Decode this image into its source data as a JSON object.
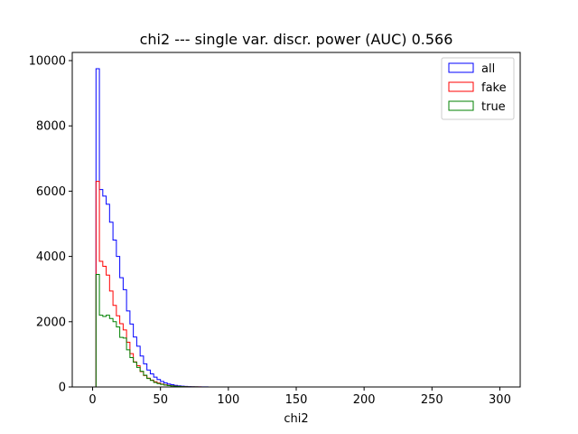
{
  "chart_data": {
    "type": "histogram",
    "title": "chi2 --- single var. discr. power (AUC) 0.566",
    "xlabel": "chi2",
    "ylabel": "",
    "xlim": [
      -15,
      315
    ],
    "ylim": [
      0,
      10250
    ],
    "xticks": [
      0,
      50,
      100,
      150,
      200,
      250,
      300
    ],
    "yticks": [
      0,
      2000,
      4000,
      6000,
      8000,
      10000
    ],
    "legend_position": "top-right",
    "grid": false,
    "bin_width": 2.5,
    "x_start": 0,
    "series": [
      {
        "name": "all",
        "color": "#0000ff",
        "values": [
          0,
          9750,
          6050,
          5850,
          5600,
          5050,
          4500,
          4000,
          3350,
          2980,
          2330,
          1930,
          1530,
          1250,
          950,
          710,
          520,
          400,
          300,
          230,
          170,
          125,
          90,
          70,
          50,
          35,
          25,
          18,
          12,
          8,
          5,
          4,
          3,
          2,
          1,
          1,
          1,
          0,
          0,
          0,
          0,
          0,
          0,
          0,
          0,
          0,
          0,
          0,
          0,
          0,
          0,
          0,
          0,
          0,
          0,
          0,
          0,
          0,
          0,
          0,
          0,
          0,
          0,
          0,
          0,
          0,
          0,
          0,
          0,
          0,
          0,
          0,
          0,
          0,
          0,
          0,
          0,
          0,
          0,
          0,
          0,
          0,
          0,
          0,
          0,
          0,
          0,
          0,
          0,
          0,
          0,
          0,
          0,
          0,
          0,
          0,
          0,
          0,
          0,
          0,
          0,
          0,
          0,
          0,
          0,
          0,
          0,
          0,
          0,
          0,
          0,
          0,
          0,
          0,
          0,
          0,
          0,
          0,
          0,
          0
        ]
      },
      {
        "name": "fake",
        "color": "#ff0000",
        "values": [
          0,
          6300,
          3850,
          3700,
          3430,
          2940,
          2500,
          2180,
          1940,
          1750,
          1370,
          1020,
          770,
          650,
          470,
          350,
          270,
          210,
          160,
          120,
          90,
          65,
          48,
          35,
          25,
          18,
          12,
          8,
          5,
          4,
          3,
          2,
          1,
          1,
          0,
          0,
          0,
          0,
          0,
          0,
          0,
          0,
          0,
          0,
          0,
          0,
          0,
          0,
          0,
          0,
          0,
          0,
          0,
          0,
          0,
          0,
          0,
          0,
          0,
          0,
          0,
          0,
          0,
          0,
          0,
          0,
          0,
          0,
          0,
          0,
          0,
          0,
          0,
          0,
          0,
          0,
          0,
          0,
          0,
          0,
          0,
          0,
          0,
          0,
          0,
          0,
          0,
          0,
          0,
          0,
          0,
          0,
          0,
          0,
          0,
          0,
          0,
          0,
          0,
          0,
          0,
          0,
          0,
          0,
          0,
          0,
          0,
          0,
          0,
          0,
          0,
          0,
          0,
          0,
          0,
          0,
          0,
          0,
          0,
          0
        ]
      },
      {
        "name": "true",
        "color": "#008000",
        "values": [
          0,
          3450,
          2200,
          2160,
          2200,
          2100,
          2000,
          1840,
          1520,
          1500,
          1140,
          900,
          760,
          600,
          480,
          360,
          260,
          200,
          140,
          105,
          80,
          60,
          42,
          30,
          22,
          16,
          11,
          8,
          5,
          3,
          2,
          1,
          1,
          0,
          0,
          0,
          0,
          0,
          0,
          0,
          0,
          0,
          0,
          0,
          0,
          0,
          0,
          0,
          0,
          0,
          0,
          0,
          0,
          0,
          0,
          0,
          0,
          0,
          0,
          0,
          0,
          0,
          0,
          0,
          0,
          0,
          0,
          0,
          0,
          0,
          0,
          0,
          0,
          0,
          0,
          0,
          0,
          0,
          0,
          0,
          0,
          0,
          0,
          0,
          0,
          0,
          0,
          0,
          0,
          0,
          0,
          0,
          0,
          0,
          0,
          0,
          0,
          0,
          0,
          0,
          0,
          0,
          0,
          0,
          0,
          0,
          0,
          0,
          0,
          0,
          0,
          0,
          0,
          0,
          0,
          0,
          0,
          0,
          0,
          0
        ]
      }
    ]
  }
}
